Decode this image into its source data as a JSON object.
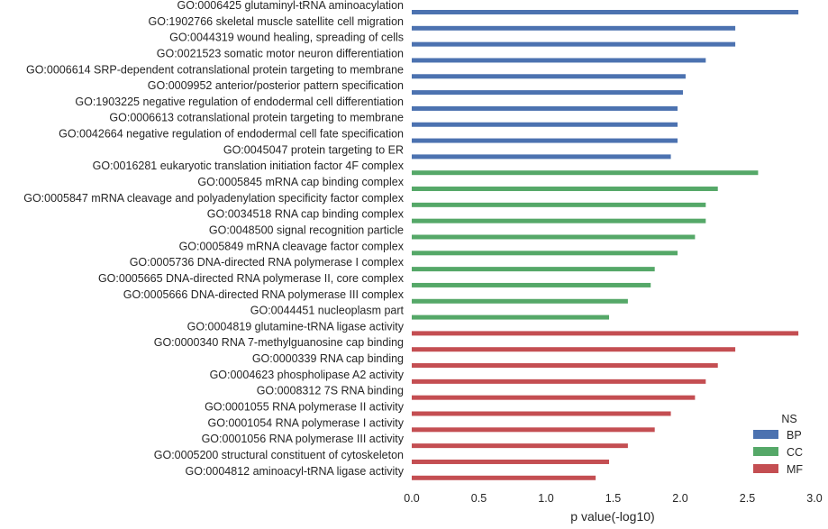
{
  "chart_data": {
    "type": "bar",
    "orientation": "horizontal",
    "xlabel": "p value(-log10)",
    "xlim": [
      0.0,
      3.0
    ],
    "xticks": [
      "0.0",
      "0.5",
      "1.0",
      "1.5",
      "2.0",
      "2.5",
      "3.0"
    ],
    "grid": false,
    "legend": {
      "title": "NS",
      "placement": "bottom-right",
      "entries": [
        "BP",
        "CC",
        "MF"
      ]
    },
    "colors": {
      "BP": "#4c72b0",
      "CC": "#55a868",
      "MF": "#c44e52"
    },
    "categories": [
      {
        "label": "GO:0006425 glutaminyl-tRNA aminoacylation",
        "group": "BP",
        "value": 2.88
      },
      {
        "label": "GO:1902766 skeletal muscle satellite cell migration",
        "group": "BP",
        "value": 2.41
      },
      {
        "label": "GO:0044319 wound healing, spreading of cells",
        "group": "BP",
        "value": 2.41
      },
      {
        "label": "GO:0021523 somatic motor neuron differentiation",
        "group": "BP",
        "value": 2.19
      },
      {
        "label": "GO:0006614 SRP-dependent cotranslational protein targeting to membrane",
        "group": "BP",
        "value": 2.04
      },
      {
        "label": "GO:0009952 anterior/posterior pattern specification",
        "group": "BP",
        "value": 2.02
      },
      {
        "label": "GO:1903225 negative regulation of endodermal cell differentiation",
        "group": "BP",
        "value": 1.98
      },
      {
        "label": "GO:0006613 cotranslational protein targeting to membrane",
        "group": "BP",
        "value": 1.98
      },
      {
        "label": "GO:0042664 negative regulation of endodermal cell fate specification",
        "group": "BP",
        "value": 1.98
      },
      {
        "label": "GO:0045047 protein targeting to ER",
        "group": "BP",
        "value": 1.93
      },
      {
        "label": "GO:0016281 eukaryotic translation initiation factor 4F complex",
        "group": "CC",
        "value": 2.58
      },
      {
        "label": "GO:0005845 mRNA cap binding complex",
        "group": "CC",
        "value": 2.28
      },
      {
        "label": "GO:0005847 mRNA cleavage and polyadenylation specificity factor complex",
        "group": "CC",
        "value": 2.19
      },
      {
        "label": "GO:0034518 RNA cap binding complex",
        "group": "CC",
        "value": 2.19
      },
      {
        "label": "GO:0048500 signal recognition particle",
        "group": "CC",
        "value": 2.11
      },
      {
        "label": "GO:0005849 mRNA cleavage factor complex",
        "group": "CC",
        "value": 1.98
      },
      {
        "label": "GO:0005736 DNA-directed RNA polymerase I complex",
        "group": "CC",
        "value": 1.81
      },
      {
        "label": "GO:0005665 DNA-directed RNA polymerase II, core complex",
        "group": "CC",
        "value": 1.78
      },
      {
        "label": "GO:0005666 DNA-directed RNA polymerase III complex",
        "group": "CC",
        "value": 1.61
      },
      {
        "label": "GO:0044451 nucleoplasm part",
        "group": "CC",
        "value": 1.47
      },
      {
        "label": "GO:0004819 glutamine-tRNA ligase activity",
        "group": "MF",
        "value": 2.88
      },
      {
        "label": "GO:0000340 RNA 7-methylguanosine cap binding",
        "group": "MF",
        "value": 2.41
      },
      {
        "label": "GO:0000339 RNA cap binding",
        "group": "MF",
        "value": 2.28
      },
      {
        "label": "GO:0004623 phospholipase A2 activity",
        "group": "MF",
        "value": 2.19
      },
      {
        "label": "GO:0008312 7S RNA binding",
        "group": "MF",
        "value": 2.11
      },
      {
        "label": "GO:0001055 RNA polymerase II activity",
        "group": "MF",
        "value": 1.93
      },
      {
        "label": "GO:0001054 RNA polymerase I activity",
        "group": "MF",
        "value": 1.81
      },
      {
        "label": "GO:0001056 RNA polymerase III activity",
        "group": "MF",
        "value": 1.61
      },
      {
        "label": "GO:0005200 structural constituent of cytoskeleton",
        "group": "MF",
        "value": 1.47
      },
      {
        "label": "GO:0004812 aminoacyl-tRNA ligase activity",
        "group": "MF",
        "value": 1.37
      }
    ]
  }
}
